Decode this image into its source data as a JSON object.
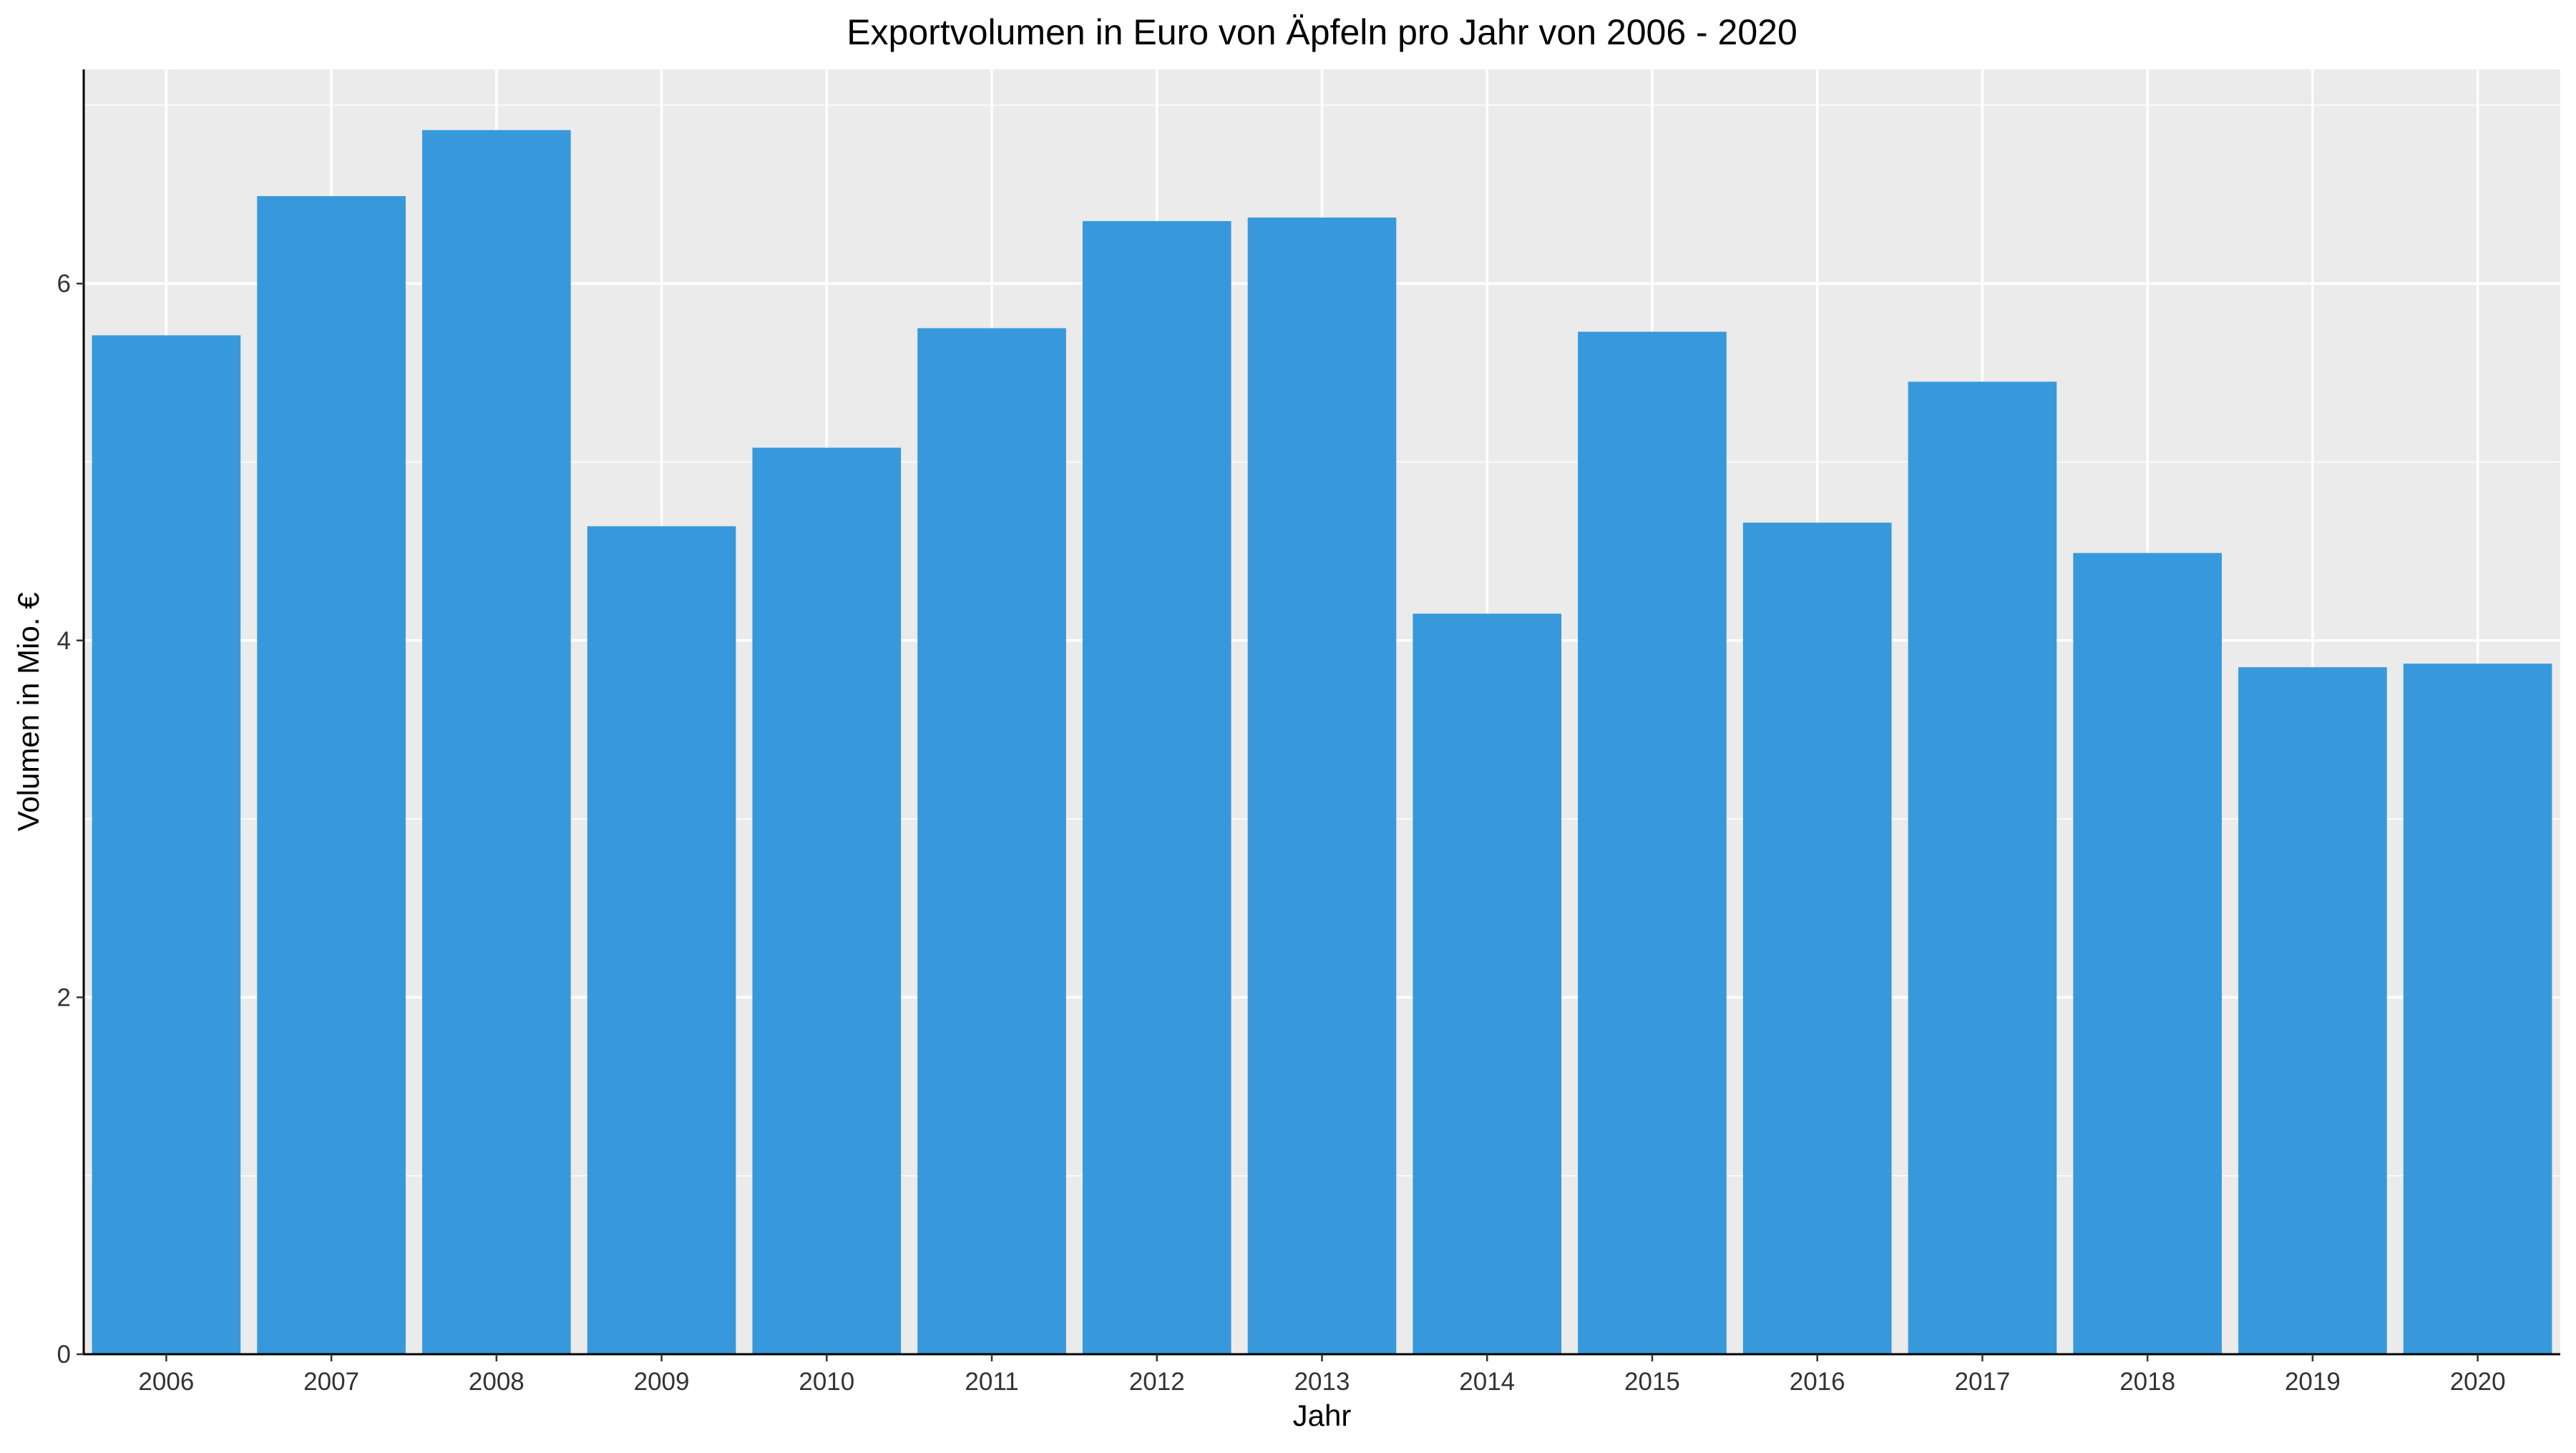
{
  "chart_data": {
    "type": "bar",
    "title": "Exportvolumen in Euro von Äpfeln pro Jahr von 2006 - 2020",
    "xlabel": "Jahr",
    "ylabel": "Volumen in Mio. €",
    "categories": [
      "2006",
      "2007",
      "2008",
      "2009",
      "2010",
      "2011",
      "2012",
      "2013",
      "2014",
      "2015",
      "2016",
      "2017",
      "2018",
      "2019",
      "2020"
    ],
    "values": [
      5.71,
      6.49,
      6.86,
      4.64,
      5.08,
      5.75,
      6.35,
      6.37,
      4.15,
      5.73,
      4.66,
      5.45,
      4.49,
      3.85,
      3.87
    ],
    "ylim": [
      0,
      7.2
    ],
    "yticks": [
      0,
      2,
      4,
      6
    ],
    "ytick_labels": [
      "0",
      "2",
      "4",
      "6"
    ],
    "grid": true,
    "legend": "none",
    "colors": {
      "bar": "#3799DB",
      "panel_background": "#EBEBEB",
      "grid": "#FFFFFF",
      "axis_line": "#000000"
    }
  }
}
